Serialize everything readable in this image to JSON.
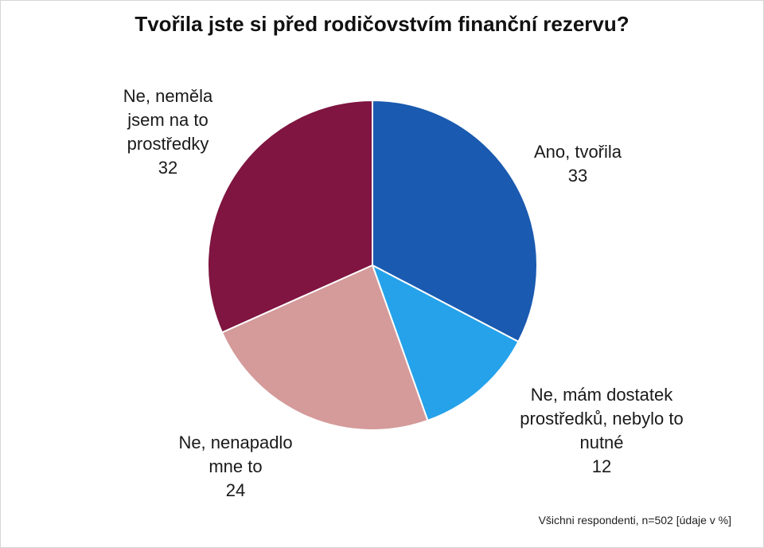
{
  "chart_data": {
    "type": "pie",
    "title": "Tvořila jste si před rodičovstvím finanční rezervu?",
    "slices": [
      {
        "label_lines": [
          "Ano, tvořila"
        ],
        "value": 33,
        "value_label": "33",
        "color": "#1a5ab0"
      },
      {
        "label_lines": [
          "Ne, mám dostatek",
          "prostředků, nebylo to",
          "nutné"
        ],
        "value": 12,
        "value_label": "12",
        "color": "#25a2ea"
      },
      {
        "label_lines": [
          "Ne, nenapadlo",
          "mne to"
        ],
        "value": 24,
        "value_label": "24",
        "color": "#d59a9a"
      },
      {
        "label_lines": [
          "Ne, neměla",
          "jsem na to",
          "prostředky"
        ],
        "value": 32,
        "value_label": "32",
        "color": "#7f1540"
      }
    ],
    "start": "top",
    "direction": "clockwise",
    "footnote": "Všichni respondenti, n=502 [údaje v %]"
  }
}
